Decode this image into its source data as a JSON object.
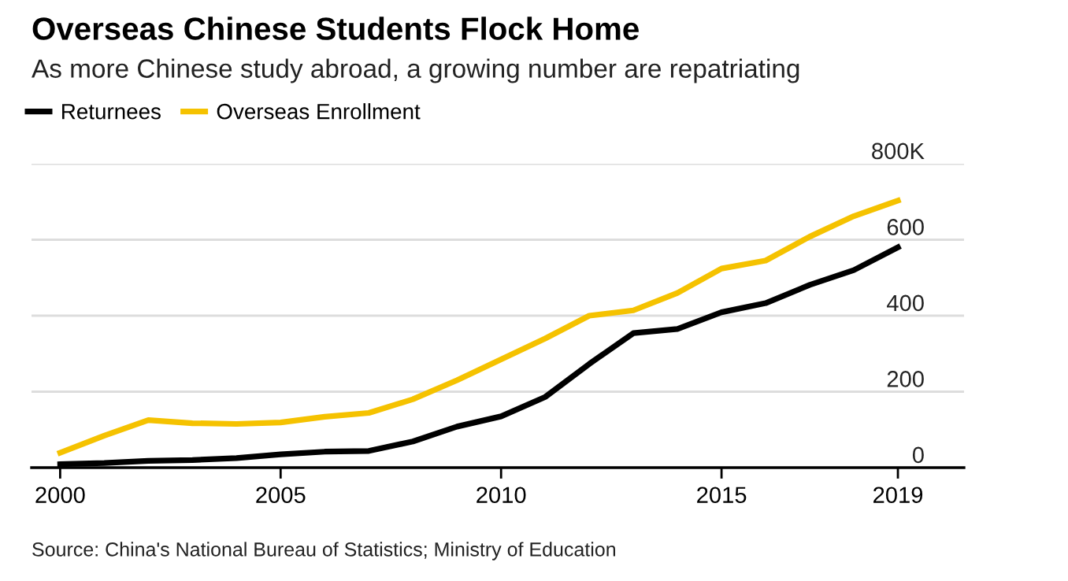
{
  "chart_data": {
    "type": "line",
    "title": "Overseas Chinese Students Flock Home",
    "subtitle": "As more Chinese study abroad, a growing number are repatriating",
    "x": [
      2000,
      2001,
      2002,
      2003,
      2004,
      2005,
      2006,
      2007,
      2008,
      2009,
      2010,
      2011,
      2012,
      2013,
      2014,
      2015,
      2016,
      2017,
      2018,
      2019
    ],
    "series": [
      {
        "name": "Returnees",
        "color": "#000000",
        "values": [
          9,
          12,
          18,
          20,
          25,
          35,
          42,
          44,
          69,
          108,
          135,
          186,
          273,
          354,
          365,
          409,
          433,
          481,
          520,
          580
        ]
      },
      {
        "name": "Overseas Enrollment",
        "color": "#f5c200",
        "values": [
          39,
          84,
          125,
          117,
          115,
          119,
          134,
          144,
          180,
          230,
          285,
          340,
          400,
          414,
          460,
          524,
          545,
          608,
          662,
          703
        ]
      }
    ],
    "xlim": [
      1999.35,
      2020.5
    ],
    "xticks": [
      2000,
      2005,
      2010,
      2015,
      2019
    ],
    "ylim": [
      0,
      800
    ],
    "yticks": [
      0,
      200,
      400,
      600,
      {
        "value": 800,
        "label": "800K"
      }
    ],
    "grid": "y",
    "legend": "top left",
    "marker": "none",
    "line_style": "solid",
    "annotations": [
      "Source: China's National Bureau of Statistics; Ministry of Education"
    ]
  }
}
